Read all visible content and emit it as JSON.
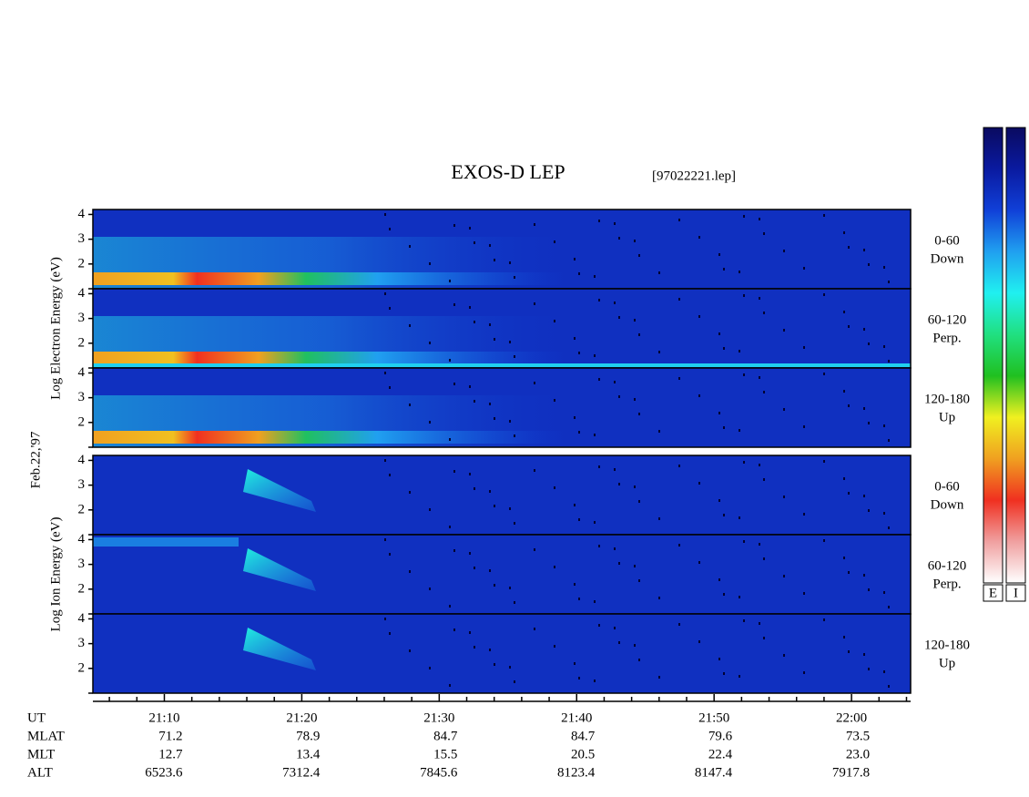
{
  "chart_data": {
    "type": "spectrogram",
    "title": "EXOS-D LEP",
    "file": "[97022221.lep]",
    "date": "Feb.22,'97",
    "xlim": [
      1264.8,
      1324.3
    ],
    "xticks": [
      {
        "value": 1270,
        "label": "21:10"
      },
      {
        "value": 1280,
        "label": "21:20"
      },
      {
        "value": 1290,
        "label": "21:30"
      },
      {
        "value": 1300,
        "label": "21:40"
      },
      {
        "value": 1310,
        "label": "21:50"
      },
      {
        "value": 1320,
        "label": "22:00"
      }
    ],
    "minor_xticks": [
      1266,
      1268,
      1272,
      1274,
      1276,
      1278,
      1282,
      1284,
      1286,
      1288,
      1292,
      1294,
      1296,
      1298,
      1302,
      1304,
      1306,
      1308,
      1312,
      1314,
      1316,
      1318,
      1322,
      1324
    ],
    "ylim": [
      1,
      4.2
    ],
    "yticks": [
      2,
      3,
      4
    ],
    "unlabeled_yticks": [
      1
    ],
    "groups": [
      {
        "ylabel": "Log Electron Energy (eV)",
        "panels": [
          {
            "label": [
              "0-60",
              "Down"
            ]
          },
          {
            "label": [
              "60-120",
              "Perp."
            ]
          },
          {
            "label": [
              "120-180",
              "Up"
            ]
          }
        ]
      },
      {
        "ylabel": "Log Ion Energy (eV)",
        "panels": [
          {
            "label": [
              "0-60",
              "Down"
            ]
          },
          {
            "label": [
              "60-120",
              "Perp."
            ]
          },
          {
            "label": [
              "120-180",
              "Up"
            ]
          }
        ]
      }
    ],
    "x_name": "UT",
    "ephemeris": [
      {
        "name": "MLAT",
        "values": [
          71.2,
          78.9,
          84.7,
          84.7,
          79.6,
          73.5
        ],
        "value_labels": [
          "71.2",
          "78.9",
          "84.7",
          "84.7",
          "79.6",
          "73.5"
        ]
      },
      {
        "name": "MLT",
        "values": [
          12.7,
          13.4,
          15.5,
          20.5,
          22.4,
          23.0
        ],
        "value_labels": [
          "12.7",
          "13.4",
          "15.5",
          "20.5",
          "22.4",
          "23.0"
        ]
      },
      {
        "name": "ALT",
        "values": [
          6523.6,
          7312.4,
          7845.6,
          8123.4,
          8147.4,
          7917.8
        ],
        "value_labels": [
          "6523.6",
          "7312.4",
          "7845.6",
          "8123.4",
          "8147.4",
          "7917.8"
        ]
      }
    ],
    "colorbars": [
      {
        "label": "E"
      },
      {
        "label": "I"
      }
    ],
    "colormap": [
      "#0a0a60",
      "#0a1aa0",
      "#1040d8",
      "#20a0f0",
      "#20f0f0",
      "#20e080",
      "#20c020",
      "#f0f020",
      "#f0a020",
      "#f03020",
      "#f0a0a0",
      "#ffffff"
    ]
  }
}
